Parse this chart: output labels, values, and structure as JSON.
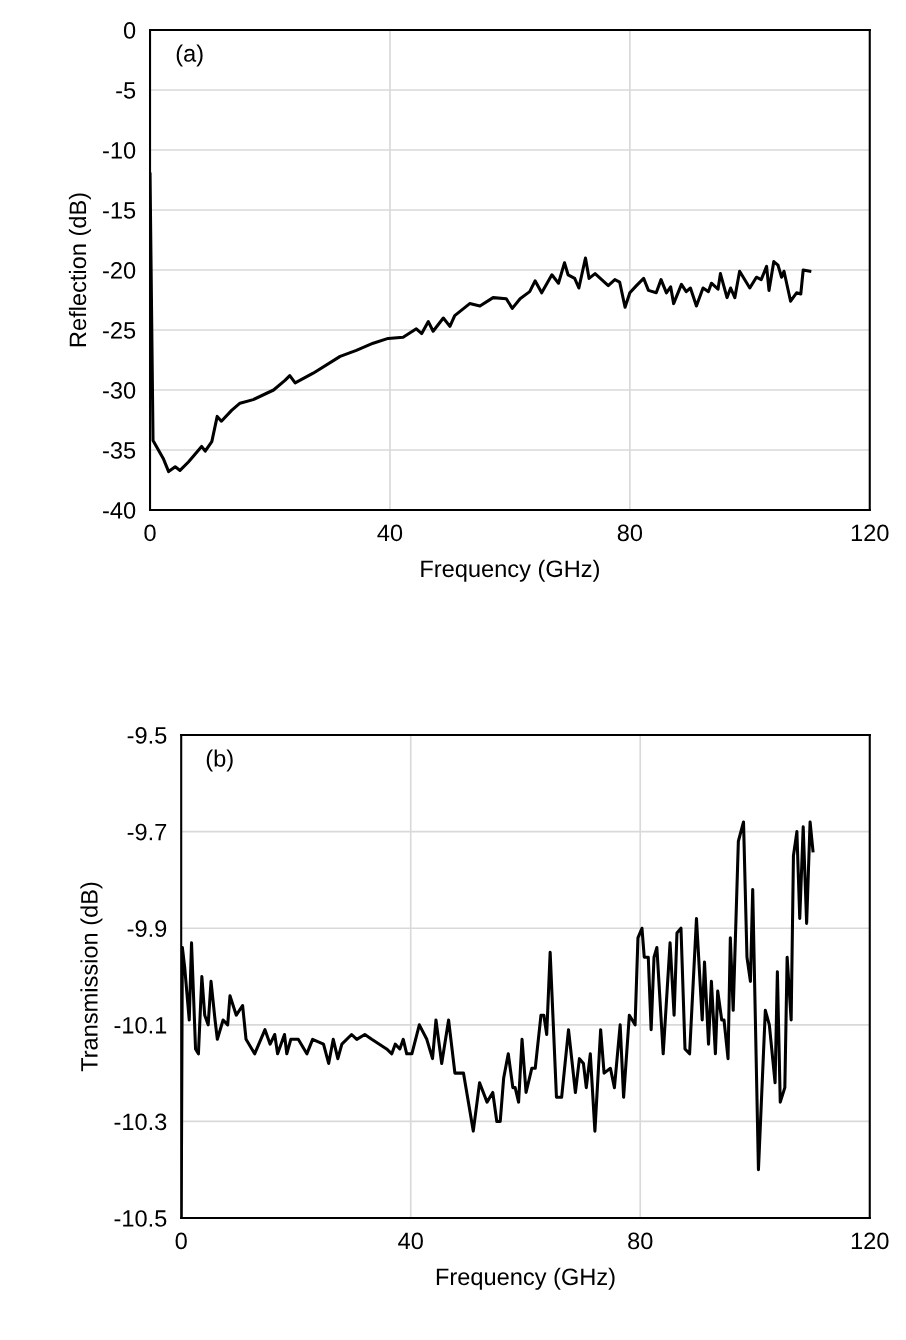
{
  "chart_data": [
    {
      "type": "line",
      "xlabel": "Frequency (GHz)",
      "ylabel": "Reflection (dB)",
      "annotations": [
        "(a)"
      ],
      "xlim": [
        0,
        120
      ],
      "ylim": [
        -40,
        0
      ],
      "xticks": [
        0,
        40,
        80,
        120
      ],
      "yticks": [
        -40,
        -35,
        -30,
        -25,
        -20,
        -15,
        -10,
        -5,
        0
      ],
      "grid": true,
      "marker": "none",
      "line_style": "solid",
      "series": [
        {
          "color": "#000000",
          "x": [
            0,
            0.5,
            2.2,
            3.1,
            4.2,
            5.0,
            6.4,
            8.6,
            9.2,
            10.3,
            11.2,
            11.9,
            13.6,
            15,
            17.2,
            20.6,
            22.5,
            23.3,
            24.2,
            27.2,
            31.7,
            34.4,
            37.2,
            39.7,
            42.2,
            44.4,
            45.3,
            46.4,
            47.2,
            48.9,
            50,
            50.8,
            53.3,
            55,
            57.2,
            59.4,
            60.4,
            61.7,
            63.3,
            64.2,
            65.3,
            67.0,
            68.1,
            69.1,
            69.7,
            70.8,
            71.5,
            72.6,
            73.2,
            74.2,
            76.4,
            77.5,
            78.3,
            79.2,
            80,
            81.1,
            82.3,
            83.1,
            84.4,
            85.2,
            86.1,
            86.8,
            87.3,
            88.6,
            89.4,
            90.1,
            91.1,
            92.2,
            93.1,
            93.6,
            94.7,
            95.1,
            96.2,
            96.8,
            97.5,
            98.3,
            100,
            101.1,
            101.9,
            102.8,
            103.2,
            104.0,
            104.7,
            105.3,
            105.7,
            106.8,
            107.8,
            108.5,
            108.9,
            110
          ],
          "values": [
            -12,
            -34.2,
            -35.7,
            -36.8,
            -36.4,
            -36.7,
            -36.0,
            -34.7,
            -35.1,
            -34.3,
            -32.2,
            -32.6,
            -31.7,
            -31.1,
            -30.8,
            -30.0,
            -29.2,
            -28.8,
            -29.4,
            -28.6,
            -27.2,
            -26.7,
            -26.1,
            -25.7,
            -25.6,
            -24.9,
            -25.3,
            -24.3,
            -25.1,
            -24.0,
            -24.7,
            -23.8,
            -22.8,
            -23.0,
            -22.3,
            -22.4,
            -23.2,
            -22.4,
            -21.8,
            -20.9,
            -21.9,
            -20.4,
            -21.1,
            -19.4,
            -20.4,
            -20.7,
            -21.5,
            -19.0,
            -20.7,
            -20.3,
            -21.3,
            -20.8,
            -21.0,
            -23.1,
            -21.9,
            -21.3,
            -20.7,
            -21.7,
            -21.9,
            -20.8,
            -21.9,
            -21.4,
            -22.8,
            -21.2,
            -21.8,
            -21.5,
            -23.0,
            -21.5,
            -21.8,
            -21.1,
            -21.6,
            -20.3,
            -22.3,
            -21.5,
            -22.3,
            -20.1,
            -21.5,
            -20.6,
            -20.8,
            -19.7,
            -21.7,
            -19.3,
            -19.6,
            -20.6,
            -20.1,
            -22.6,
            -21.9,
            -22.0,
            -20.0,
            -20.1
          ]
        }
      ]
    },
    {
      "type": "line",
      "xlabel": "Frequency (GHz)",
      "ylabel": "Transmission (dB)",
      "annotations": [
        "(b)"
      ],
      "xlim": [
        0,
        120
      ],
      "ylim": [
        -10.5,
        -9.5
      ],
      "xticks": [
        0,
        40,
        80,
        120
      ],
      "yticks": [
        -10.5,
        -10.3,
        -10.1,
        -9.9,
        -9.7,
        -9.5
      ],
      "grid": true,
      "marker": "none",
      "line_style": "solid",
      "series": [
        {
          "color": "#000000",
          "x": [
            0,
            0.2,
            0.6,
            1.4,
            1.8,
            2.5,
            3.0,
            3.6,
            4.1,
            4.7,
            5.2,
            5.9,
            6.3,
            7.3,
            8.1,
            8.5,
            9.6,
            10.7,
            11.3,
            12.8,
            14.6,
            15.5,
            16.3,
            16.8,
            18.0,
            18.4,
            19.1,
            20.4,
            21.9,
            22.9,
            24.8,
            25.7,
            26.5,
            27.3,
            28.0,
            29.7,
            30.6,
            32.0,
            33.2,
            35.8,
            36.7,
            37.3,
            38.1,
            38.7,
            39.3,
            40.2,
            41.5,
            42.8,
            43.8,
            44.4,
            45.4,
            46.6,
            47.7,
            49.2,
            50.9,
            52.0,
            53.3,
            54.3,
            55.0,
            55.6,
            56.2,
            57.0,
            57.8,
            58.2,
            58.8,
            59.4,
            60.1,
            61.1,
            61.7,
            62.7,
            63.2,
            63.7,
            64.3,
            65.4,
            66.3,
            67.5,
            68.7,
            69.4,
            70.1,
            70.6,
            71.3,
            72.1,
            73.1,
            73.7,
            74.8,
            75.5,
            76.5,
            77.1,
            78.1,
            79.1,
            79.6,
            80.3,
            80.7,
            81.4,
            81.9,
            82.4,
            82.9,
            84.0,
            85.2,
            85.9,
            86.4,
            87.1,
            87.8,
            88.6,
            89.8,
            90.8,
            91.2,
            91.9,
            92.4,
            93.1,
            93.5,
            94.2,
            94.6,
            95.3,
            95.7,
            96.2,
            97.1,
            98.0,
            98.6,
            99.2,
            99.6,
            100.6,
            101.8,
            102.5,
            103.5,
            103.9,
            104.4,
            105.2,
            105.6,
            106.3,
            106.7,
            107.3,
            107.8,
            108.4,
            109.0,
            109.6,
            110.1
          ],
          "values": [
            -10.5,
            -9.94,
            -9.98,
            -10.09,
            -9.93,
            -10.15,
            -10.16,
            -10.0,
            -10.08,
            -10.1,
            -10.01,
            -10.09,
            -10.13,
            -10.09,
            -10.1,
            -10.04,
            -10.08,
            -10.06,
            -10.13,
            -10.16,
            -10.11,
            -10.14,
            -10.12,
            -10.16,
            -10.12,
            -10.16,
            -10.13,
            -10.13,
            -10.16,
            -10.13,
            -10.14,
            -10.18,
            -10.13,
            -10.17,
            -10.14,
            -10.12,
            -10.13,
            -10.12,
            -10.13,
            -10.15,
            -10.16,
            -10.14,
            -10.15,
            -10.13,
            -10.16,
            -10.16,
            -10.1,
            -10.13,
            -10.17,
            -10.09,
            -10.18,
            -10.09,
            -10.2,
            -10.2,
            -10.32,
            -10.22,
            -10.26,
            -10.24,
            -10.3,
            -10.3,
            -10.21,
            -10.16,
            -10.23,
            -10.23,
            -10.26,
            -10.13,
            -10.24,
            -10.19,
            -10.19,
            -10.08,
            -10.08,
            -10.12,
            -9.95,
            -10.25,
            -10.25,
            -10.11,
            -10.24,
            -10.17,
            -10.18,
            -10.23,
            -10.16,
            -10.32,
            -10.11,
            -10.2,
            -10.19,
            -10.23,
            -10.1,
            -10.25,
            -10.08,
            -10.1,
            -9.92,
            -9.9,
            -9.96,
            -9.96,
            -10.11,
            -9.96,
            -9.94,
            -10.16,
            -9.93,
            -10.08,
            -9.91,
            -9.9,
            -10.15,
            -10.16,
            -9.88,
            -10.09,
            -9.97,
            -10.14,
            -10.01,
            -10.16,
            -10.03,
            -10.09,
            -10.09,
            -10.17,
            -9.92,
            -10.07,
            -9.72,
            -9.68,
            -9.96,
            -10.01,
            -9.82,
            -10.4,
            -10.07,
            -10.1,
            -10.22,
            -9.99,
            -10.26,
            -10.23,
            -9.96,
            -10.09,
            -9.75,
            -9.7,
            -9.88,
            -9.69,
            -9.89,
            -9.68,
            -9.74
          ]
        }
      ]
    }
  ]
}
